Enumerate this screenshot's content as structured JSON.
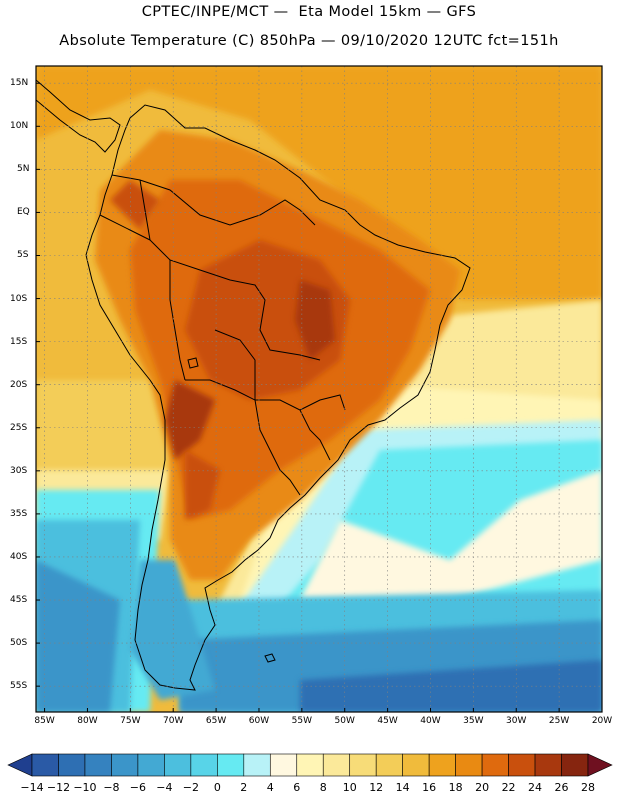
{
  "header": {
    "line1": "CPTEC/INPE/MCT —  Eta Model 15km — GFS",
    "line2": "Absolute Temperature (C) 850hPa — 09/10/2020 12UTC fct=151h"
  },
  "map": {
    "projection": "cylindrical lon/lat",
    "lon_range": [
      -86,
      -20
    ],
    "lat_range": [
      17,
      -58
    ],
    "lat_labels": [
      "15N",
      "10N",
      "5N",
      "EQ",
      "5S",
      "10S",
      "15S",
      "20S",
      "25S",
      "30S",
      "35S",
      "40S",
      "45S",
      "50S",
      "55S"
    ],
    "lon_labels": [
      "85W",
      "80W",
      "75W",
      "70W",
      "65W",
      "60W",
      "55W",
      "50W",
      "45W",
      "40W",
      "35W",
      "30W",
      "25W",
      "20W"
    ],
    "grid": true,
    "field_description": "Hot (22-28C) over central South American continent, 16-20C over tropical ocean, cool (0-6C) band over southern Atlantic"
  },
  "colorbar": {
    "labels": [
      "-14",
      "-12",
      "-10",
      "-8",
      "-6",
      "-4",
      "-2",
      "0",
      "2",
      "4",
      "6",
      "8",
      "10",
      "12",
      "14",
      "16",
      "18",
      "20",
      "22",
      "24",
      "26",
      "28"
    ],
    "colors": [
      "#1f3f8f",
      "#2a5aa6",
      "#2e6fb3",
      "#3582bf",
      "#3b95c9",
      "#43a9d3",
      "#4cbfde",
      "#58d4e8",
      "#66eaf2",
      "#b8f2f7",
      "#fff8e0",
      "#fff5b5",
      "#fbe99a",
      "#f7dc78",
      "#f3cd58",
      "#f0bb3c",
      "#eea21e",
      "#e98a12",
      "#df6a0e",
      "#c9500d",
      "#a8380e",
      "#86250f",
      "#6f1020"
    ]
  }
}
